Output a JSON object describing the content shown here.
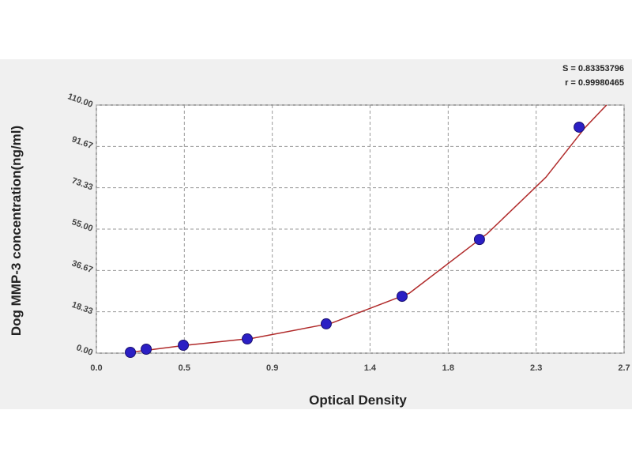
{
  "chart_data": {
    "type": "scatter",
    "xlabel": "Optical Density",
    "ylabel": "Dog MMP-3 concentration(ng/ml)",
    "annotations": [
      "S = 0.83353796",
      "r = 0.99980465"
    ],
    "xlim": [
      0,
      2.7
    ],
    "ylim": [
      0,
      110
    ],
    "xticks": [
      {
        "value": 0,
        "label": "0.0"
      },
      {
        "value": 0.45,
        "label": "0.5"
      },
      0.9,
      1.4,
      1.8,
      {
        "value": 2.25,
        "label": "2.3"
      },
      2.7
    ],
    "yticks": [
      {
        "value": 0,
        "label": "0.00"
      },
      18.33,
      36.67,
      {
        "value": 55,
        "label": "55.00"
      },
      73.33,
      91.67,
      {
        "value": 110,
        "label": "110.00"
      }
    ],
    "grid": true,
    "points": {
      "color": "#2b1fc4",
      "x": [
        0.174,
        0.255,
        0.445,
        0.772,
        1.176,
        1.564,
        1.96,
        2.47
      ],
      "y": [
        0.35,
        1.75,
        3.5,
        6.3,
        13.0,
        25.2,
        50.4,
        100.2
      ]
    },
    "curve": {
      "color": "#b02a2a",
      "x": [
        0.17,
        0.45,
        0.8,
        1.2,
        1.6,
        2.0,
        2.3,
        2.5,
        2.61
      ],
      "y": [
        0.3,
        3.4,
        6.6,
        13.2,
        26.5,
        53,
        78,
        100,
        110
      ]
    }
  }
}
